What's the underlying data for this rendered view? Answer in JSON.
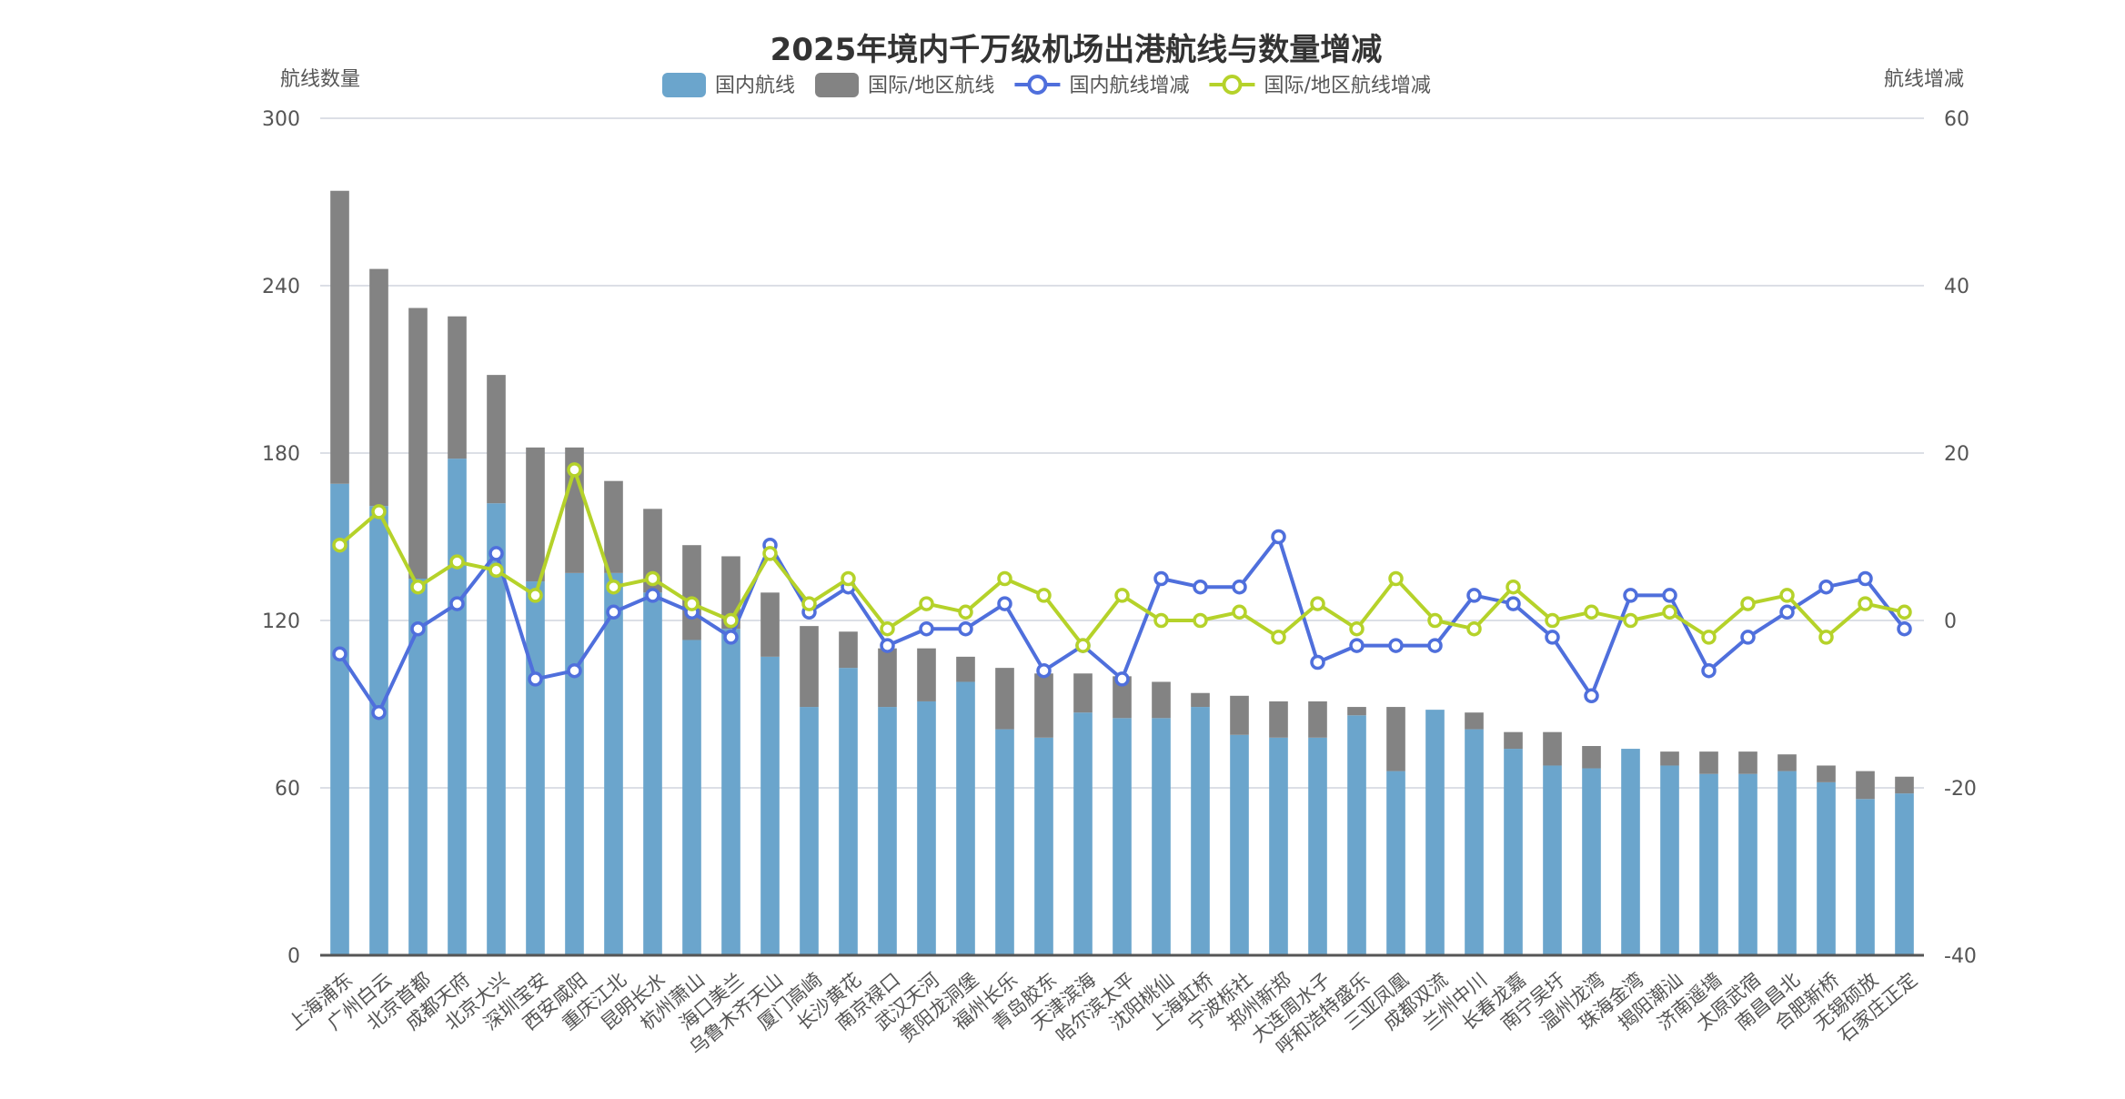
{
  "chart_data": {
    "type": "bar",
    "title": "2025年境内千万级机场出港航线与数量增减",
    "ylabel": "航线数量",
    "y2label": "航线增减",
    "ylim": [
      0,
      300
    ],
    "y2lim": [
      -40,
      60
    ],
    "yticks": [
      "0",
      "60",
      "120",
      "180",
      "240",
      "300"
    ],
    "y2ticks": [
      "-40",
      "-20",
      "0",
      "20",
      "40",
      "60"
    ],
    "grid": true,
    "legend_position": "top-center",
    "categories": [
      "上海浦东",
      "广州白云",
      "北京首都",
      "成都天府",
      "北京大兴",
      "深圳宝安",
      "西安咸阳",
      "重庆江北",
      "昆明长水",
      "杭州萧山",
      "海口美兰",
      "乌鲁木齐天山",
      "厦门高崎",
      "长沙黄花",
      "南京禄口",
      "武汉天河",
      "贵阳龙洞堡",
      "福州长乐",
      "青岛胶东",
      "天津滨海",
      "哈尔滨太平",
      "沈阳桃仙",
      "上海虹桥",
      "宁波栎社",
      "郑州新郑",
      "大连周水子",
      "呼和浩特盛乐",
      "三亚凤凰",
      "成都双流",
      "兰州中川",
      "长春龙嘉",
      "南宁吴圩",
      "温州龙湾",
      "珠海金湾",
      "揭阳潮汕",
      "济南遥墙",
      "太原武宿",
      "南昌昌北",
      "合肥新桥",
      "无锡硕放",
      "石家庄正定"
    ],
    "series": [
      {
        "name": "国内航线",
        "type": "bar",
        "stack": "total",
        "axis": "left",
        "color": "#6ba5cc",
        "values": [
          169,
          161,
          135,
          178,
          162,
          134,
          137,
          137,
          130,
          113,
          117,
          107,
          89,
          103,
          89,
          91,
          98,
          81,
          78,
          87,
          85,
          85,
          89,
          79,
          78,
          78,
          86,
          66,
          88,
          81,
          74,
          68,
          67,
          74,
          68,
          65,
          65,
          66,
          62,
          56,
          58
        ]
      },
      {
        "name": "国际/地区航线",
        "type": "bar",
        "stack": "total",
        "axis": "left",
        "color": "#838383",
        "values": [
          105,
          85,
          97,
          51,
          46,
          48,
          45,
          33,
          30,
          34,
          26,
          23,
          29,
          13,
          21,
          19,
          9,
          22,
          23,
          14,
          15,
          13,
          5,
          14,
          13,
          13,
          3,
          23,
          0,
          6,
          6,
          12,
          8,
          0,
          5,
          8,
          8,
          6,
          6,
          10,
          6
        ]
      },
      {
        "name": "国内航线增减",
        "type": "line",
        "axis": "right",
        "color": "#4f6fdc",
        "values": [
          -4,
          -11,
          -1,
          2,
          8,
          -7,
          -6,
          1,
          3,
          1,
          -2,
          9,
          1,
          4,
          -3,
          -1,
          -1,
          2,
          -6,
          -3,
          -7,
          5,
          4,
          4,
          10,
          -5,
          -3,
          -3,
          -3,
          3,
          2,
          -2,
          -9,
          3,
          3,
          -6,
          -2,
          1,
          4,
          5,
          -1
        ]
      },
      {
        "name": "国际/地区航线增减",
        "type": "line",
        "axis": "right",
        "color": "#b5d22a",
        "values": [
          9,
          13,
          4,
          7,
          6,
          3,
          18,
          4,
          5,
          2,
          0,
          8,
          2,
          5,
          -1,
          2,
          1,
          5,
          3,
          -3,
          3,
          0,
          0,
          1,
          -2,
          2,
          -1,
          5,
          0,
          -1,
          4,
          0,
          1,
          0,
          1,
          -2,
          2,
          3,
          -2,
          2,
          1
        ]
      }
    ]
  }
}
